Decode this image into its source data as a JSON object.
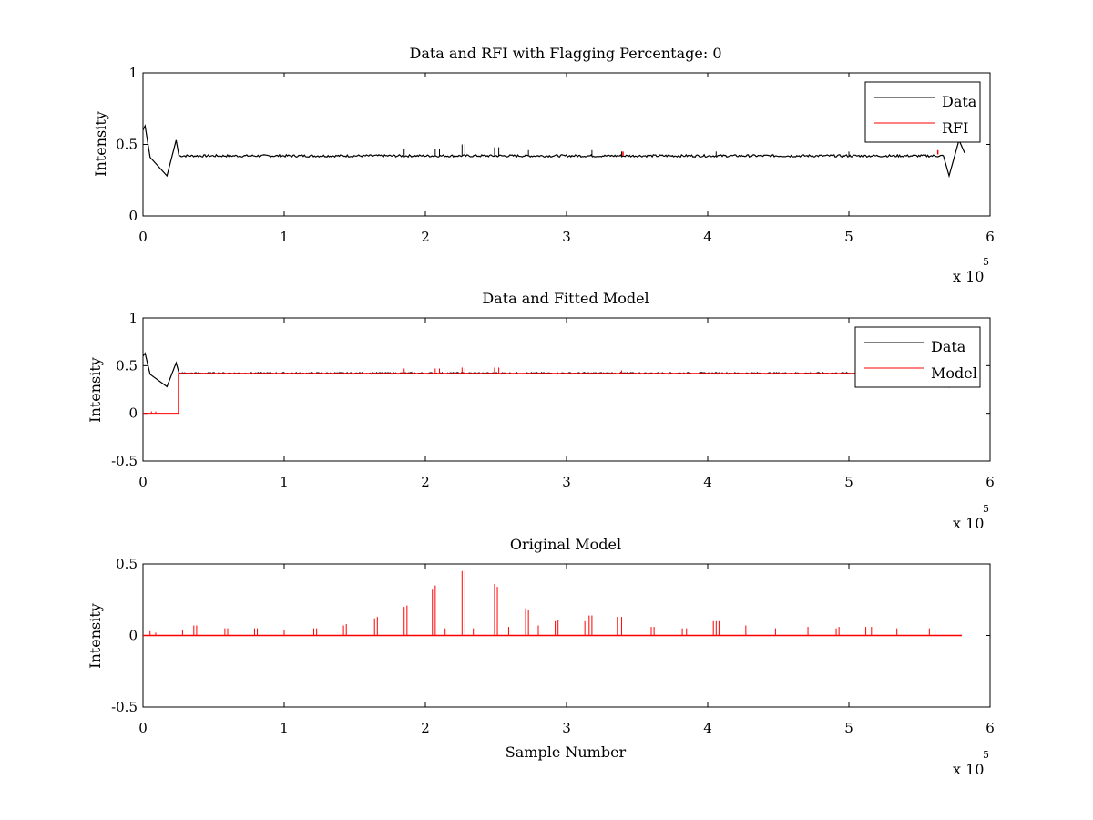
{
  "colors": {
    "data": "#000000",
    "rfi": "#ff0000",
    "model": "#ff0000",
    "background": "#ffffff"
  },
  "chart_data": [
    {
      "type": "line",
      "title": "Data and RFI with Flagging Percentage: 0",
      "xlabel": "",
      "ylabel": "Intensity",
      "xlim": [
        0,
        600000
      ],
      "ylim": [
        0,
        1
      ],
      "xticks": [
        0,
        1,
        2,
        3,
        4,
        5,
        6
      ],
      "yticks": [
        "0",
        "0.5",
        "1"
      ],
      "x_multiplier_label": "x 10",
      "x_multiplier_exponent": "5",
      "legend": {
        "position": "top-right",
        "entries": [
          "Data",
          "RFI"
        ]
      },
      "series": [
        {
          "name": "Data",
          "color": "#000000",
          "baseline": 0.42,
          "noise": 0.008,
          "edge_features": [
            {
              "x": 1500,
              "y": 0.63
            },
            {
              "x": 5000,
              "y": 0.41
            },
            {
              "x": 17000,
              "y": 0.28
            },
            {
              "x": 23500,
              "y": 0.53
            },
            {
              "x": 571000,
              "y": 0.28
            },
            {
              "x": 578000,
              "y": 0.53
            }
          ],
          "spikes": [
            {
              "x": 185000,
              "y": 0.47
            },
            {
              "x": 207000,
              "y": 0.47
            },
            {
              "x": 210000,
              "y": 0.47
            },
            {
              "x": 226000,
              "y": 0.5
            },
            {
              "x": 228000,
              "y": 0.5
            },
            {
              "x": 249000,
              "y": 0.48
            },
            {
              "x": 252000,
              "y": 0.48
            },
            {
              "x": 273000,
              "y": 0.46
            },
            {
              "x": 318000,
              "y": 0.46
            },
            {
              "x": 339000,
              "y": 0.45
            },
            {
              "x": 406000,
              "y": 0.45
            },
            {
              "x": 500000,
              "y": 0.45
            }
          ]
        },
        {
          "name": "RFI",
          "color": "#ff0000",
          "points": [
            {
              "x": 340000,
              "y": 0.45
            },
            {
              "x": 563000,
              "y": 0.46
            }
          ]
        }
      ]
    },
    {
      "type": "line",
      "title": "Data and Fitted Model",
      "xlabel": "",
      "ylabel": "Intensity",
      "xlim": [
        0,
        600000
      ],
      "ylim": [
        -0.5,
        1
      ],
      "xticks": [
        0,
        1,
        2,
        3,
        4,
        5,
        6
      ],
      "yticks": [
        "-0.5",
        "0",
        "0.5",
        "1"
      ],
      "x_multiplier_label": "x 10",
      "x_multiplier_exponent": "5",
      "legend": {
        "position": "top-right",
        "entries": [
          "Data",
          "Model"
        ]
      },
      "series": [
        {
          "name": "Data",
          "color": "#000000",
          "baseline": 0.42,
          "noise": 0.008,
          "edge_features": [
            {
              "x": 1500,
              "y": 0.63
            },
            {
              "x": 5000,
              "y": 0.41
            },
            {
              "x": 17000,
              "y": 0.28
            },
            {
              "x": 23500,
              "y": 0.53
            },
            {
              "x": 571000,
              "y": 0.28
            },
            {
              "x": 578000,
              "y": 0.53
            }
          ]
        },
        {
          "name": "Model",
          "color": "#ff0000",
          "step": {
            "x": 25000,
            "before": 0.0,
            "after": 0.42
          },
          "spikes": [
            {
              "x": 185000,
              "y": 0.47
            },
            {
              "x": 207000,
              "y": 0.47
            },
            {
              "x": 210000,
              "y": 0.47
            },
            {
              "x": 226000,
              "y": 0.48
            },
            {
              "x": 228000,
              "y": 0.48
            },
            {
              "x": 249000,
              "y": 0.48
            },
            {
              "x": 252000,
              "y": 0.48
            },
            {
              "x": 339000,
              "y": 0.45
            }
          ]
        }
      ]
    },
    {
      "type": "line",
      "title": "Original Model",
      "xlabel": "Sample Number",
      "ylabel": "Intensity",
      "xlim": [
        0,
        600000
      ],
      "ylim": [
        -0.5,
        0.5
      ],
      "xticks": [
        0,
        1,
        2,
        3,
        4,
        5,
        6
      ],
      "yticks": [
        "-0.5",
        "0",
        "0.5"
      ],
      "x_multiplier_label": "x 10",
      "x_multiplier_exponent": "5",
      "series": [
        {
          "name": "",
          "color": "#ff0000",
          "x_end": 580000,
          "spikes": [
            {
              "x": 5000,
              "y": 0.03
            },
            {
              "x": 9000,
              "y": 0.02
            },
            {
              "x": 28000,
              "y": 0.04
            },
            {
              "x": 36000,
              "y": 0.07
            },
            {
              "x": 38000,
              "y": 0.07
            },
            {
              "x": 58000,
              "y": 0.05
            },
            {
              "x": 60000,
              "y": 0.05
            },
            {
              "x": 79000,
              "y": 0.05
            },
            {
              "x": 81000,
              "y": 0.05
            },
            {
              "x": 100000,
              "y": 0.04
            },
            {
              "x": 121000,
              "y": 0.05
            },
            {
              "x": 123000,
              "y": 0.05
            },
            {
              "x": 142000,
              "y": 0.07
            },
            {
              "x": 144000,
              "y": 0.08
            },
            {
              "x": 164000,
              "y": 0.12
            },
            {
              "x": 166000,
              "y": 0.13
            },
            {
              "x": 185000,
              "y": 0.2
            },
            {
              "x": 187000,
              "y": 0.21
            },
            {
              "x": 205000,
              "y": 0.32
            },
            {
              "x": 207000,
              "y": 0.35
            },
            {
              "x": 214000,
              "y": 0.05
            },
            {
              "x": 226000,
              "y": 0.45
            },
            {
              "x": 228000,
              "y": 0.45
            },
            {
              "x": 234000,
              "y": 0.05
            },
            {
              "x": 249000,
              "y": 0.36
            },
            {
              "x": 251000,
              "y": 0.34
            },
            {
              "x": 259000,
              "y": 0.06
            },
            {
              "x": 271000,
              "y": 0.19
            },
            {
              "x": 273000,
              "y": 0.18
            },
            {
              "x": 280000,
              "y": 0.07
            },
            {
              "x": 292000,
              "y": 0.1
            },
            {
              "x": 294000,
              "y": 0.11
            },
            {
              "x": 313000,
              "y": 0.1
            },
            {
              "x": 316000,
              "y": 0.14
            },
            {
              "x": 318000,
              "y": 0.14
            },
            {
              "x": 336000,
              "y": 0.13
            },
            {
              "x": 339000,
              "y": 0.13
            },
            {
              "x": 360000,
              "y": 0.06
            },
            {
              "x": 362000,
              "y": 0.06
            },
            {
              "x": 382000,
              "y": 0.05
            },
            {
              "x": 385000,
              "y": 0.05
            },
            {
              "x": 404000,
              "y": 0.1
            },
            {
              "x": 406000,
              "y": 0.1
            },
            {
              "x": 408000,
              "y": 0.1
            },
            {
              "x": 427000,
              "y": 0.07
            },
            {
              "x": 448000,
              "y": 0.05
            },
            {
              "x": 471000,
              "y": 0.06
            },
            {
              "x": 491000,
              "y": 0.05
            },
            {
              "x": 493000,
              "y": 0.06
            },
            {
              "x": 512000,
              "y": 0.06
            },
            {
              "x": 516000,
              "y": 0.06
            },
            {
              "x": 534000,
              "y": 0.05
            },
            {
              "x": 557000,
              "y": 0.05
            },
            {
              "x": 561000,
              "y": 0.04
            }
          ]
        }
      ]
    }
  ]
}
